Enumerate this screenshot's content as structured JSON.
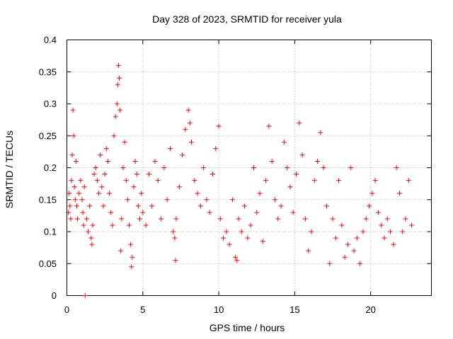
{
  "chart_data": {
    "type": "scatter",
    "title": "Day 328 of 2023, SRMTID for receiver yula",
    "xlabel": "GPS time / hours",
    "ylabel": "SRMTID / TECUs",
    "xlim": [
      0,
      24
    ],
    "ylim": [
      0,
      0.4
    ],
    "x_ticks": [
      0,
      5,
      10,
      15,
      20
    ],
    "x_tick_labels": [
      "0",
      "5",
      "10",
      "15",
      "20"
    ],
    "y_ticks": [
      0,
      0.05,
      0.1,
      0.15,
      0.2,
      0.25,
      0.3,
      0.35,
      0.4
    ],
    "y_tick_labels": [
      "0",
      "0.05",
      "0.1",
      "0.15",
      "0.2",
      "0.25",
      "0.3",
      "0.35",
      "0.4"
    ],
    "grid": true,
    "marker": "+",
    "marker_color": "#ff0000",
    "series": [
      {
        "name": "SRMTID",
        "points": [
          [
            0.1,
            0.13
          ],
          [
            0.15,
            0.16
          ],
          [
            0.2,
            0.14
          ],
          [
            0.25,
            0.12
          ],
          [
            0.3,
            0.18
          ],
          [
            0.35,
            0.22
          ],
          [
            0.4,
            0.29
          ],
          [
            0.45,
            0.25
          ],
          [
            0.5,
            0.17
          ],
          [
            0.55,
            0.15
          ],
          [
            0.6,
            0.21
          ],
          [
            0.65,
            0.14
          ],
          [
            0.7,
            0.12
          ],
          [
            0.8,
            0.16
          ],
          [
            0.9,
            0.18
          ],
          [
            1.0,
            0.15
          ],
          [
            1.05,
            0.13
          ],
          [
            1.1,
            0.11
          ],
          [
            1.15,
            0.17
          ],
          [
            1.2,
            0.0
          ],
          [
            1.3,
            0.12
          ],
          [
            1.4,
            0.1
          ],
          [
            1.5,
            0.14
          ],
          [
            1.6,
            0.09
          ],
          [
            1.65,
            0.08
          ],
          [
            1.7,
            0.11
          ],
          [
            1.8,
            0.19
          ],
          [
            1.9,
            0.2
          ],
          [
            2.0,
            0.18
          ],
          [
            2.1,
            0.16
          ],
          [
            2.2,
            0.22
          ],
          [
            2.3,
            0.17
          ],
          [
            2.4,
            0.14
          ],
          [
            2.5,
            0.19
          ],
          [
            2.6,
            0.23
          ],
          [
            2.7,
            0.21
          ],
          [
            2.8,
            0.16
          ],
          [
            2.9,
            0.13
          ],
          [
            3.0,
            0.11
          ],
          [
            3.1,
            0.25
          ],
          [
            3.2,
            0.28
          ],
          [
            3.3,
            0.3
          ],
          [
            3.35,
            0.33
          ],
          [
            3.4,
            0.36
          ],
          [
            3.45,
            0.34
          ],
          [
            3.5,
            0.29
          ],
          [
            3.55,
            0.07
          ],
          [
            3.6,
            0.12
          ],
          [
            3.7,
            0.2
          ],
          [
            3.8,
            0.24
          ],
          [
            3.9,
            0.18
          ],
          [
            4.0,
            0.15
          ],
          [
            4.1,
            0.11
          ],
          [
            4.2,
            0.08
          ],
          [
            4.25,
            0.045
          ],
          [
            4.3,
            0.06
          ],
          [
            4.4,
            0.17
          ],
          [
            4.5,
            0.21
          ],
          [
            4.6,
            0.19
          ],
          [
            4.7,
            0.14
          ],
          [
            4.8,
            0.12
          ],
          [
            4.9,
            0.16
          ],
          [
            5.0,
            0.13
          ],
          [
            5.2,
            0.11
          ],
          [
            5.4,
            0.19
          ],
          [
            5.6,
            0.14
          ],
          [
            5.8,
            0.21
          ],
          [
            6.0,
            0.18
          ],
          [
            6.2,
            0.12
          ],
          [
            6.4,
            0.2
          ],
          [
            6.6,
            0.15
          ],
          [
            6.8,
            0.23
          ],
          [
            7.0,
            0.1
          ],
          [
            7.1,
            0.09
          ],
          [
            7.15,
            0.055
          ],
          [
            7.2,
            0.12
          ],
          [
            7.4,
            0.17
          ],
          [
            7.6,
            0.22
          ],
          [
            7.8,
            0.26
          ],
          [
            8.0,
            0.29
          ],
          [
            8.1,
            0.27
          ],
          [
            8.2,
            0.24
          ],
          [
            8.4,
            0.18
          ],
          [
            8.6,
            0.16
          ],
          [
            8.8,
            0.14
          ],
          [
            9.0,
            0.2
          ],
          [
            9.2,
            0.15
          ],
          [
            9.4,
            0.13
          ],
          [
            9.6,
            0.19
          ],
          [
            9.8,
            0.23
          ],
          [
            10.0,
            0.265
          ],
          [
            10.1,
            0.12
          ],
          [
            10.3,
            0.09
          ],
          [
            10.5,
            0.1
          ],
          [
            10.7,
            0.08
          ],
          [
            10.9,
            0.15
          ],
          [
            11.1,
            0.06
          ],
          [
            11.2,
            0.055
          ],
          [
            11.3,
            0.12
          ],
          [
            11.5,
            0.1
          ],
          [
            11.7,
            0.14
          ],
          [
            11.9,
            0.09
          ],
          [
            12.1,
            0.11
          ],
          [
            12.3,
            0.2
          ],
          [
            12.5,
            0.13
          ],
          [
            12.7,
            0.16
          ],
          [
            12.9,
            0.085
          ],
          [
            13.1,
            0.18
          ],
          [
            13.3,
            0.265
          ],
          [
            13.5,
            0.21
          ],
          [
            13.7,
            0.15
          ],
          [
            13.9,
            0.12
          ],
          [
            14.1,
            0.14
          ],
          [
            14.3,
            0.24
          ],
          [
            14.5,
            0.2
          ],
          [
            14.7,
            0.17
          ],
          [
            14.9,
            0.13
          ],
          [
            15.1,
            0.19
          ],
          [
            15.3,
            0.27
          ],
          [
            15.5,
            0.22
          ],
          [
            15.7,
            0.12
          ],
          [
            15.9,
            0.07
          ],
          [
            16.1,
            0.1
          ],
          [
            16.3,
            0.18
          ],
          [
            16.5,
            0.21
          ],
          [
            16.7,
            0.255
          ],
          [
            16.9,
            0.2
          ],
          [
            17.1,
            0.14
          ],
          [
            17.3,
            0.05
          ],
          [
            17.5,
            0.12
          ],
          [
            17.7,
            0.09
          ],
          [
            17.9,
            0.18
          ],
          [
            18.1,
            0.11
          ],
          [
            18.3,
            0.06
          ],
          [
            18.5,
            0.08
          ],
          [
            18.7,
            0.2
          ],
          [
            18.9,
            0.07
          ],
          [
            19.1,
            0.09
          ],
          [
            19.3,
            0.05
          ],
          [
            19.5,
            0.1
          ],
          [
            19.7,
            0.12
          ],
          [
            19.9,
            0.14
          ],
          [
            20.1,
            0.16
          ],
          [
            20.3,
            0.18
          ],
          [
            20.5,
            0.13
          ],
          [
            20.7,
            0.11
          ],
          [
            20.9,
            0.09
          ],
          [
            21.1,
            0.12
          ],
          [
            21.3,
            0.1
          ],
          [
            21.5,
            0.08
          ],
          [
            21.7,
            0.2
          ],
          [
            21.9,
            0.16
          ],
          [
            22.1,
            0.1
          ],
          [
            22.3,
            0.12
          ],
          [
            22.5,
            0.18
          ],
          [
            22.7,
            0.11
          ]
        ]
      }
    ]
  }
}
